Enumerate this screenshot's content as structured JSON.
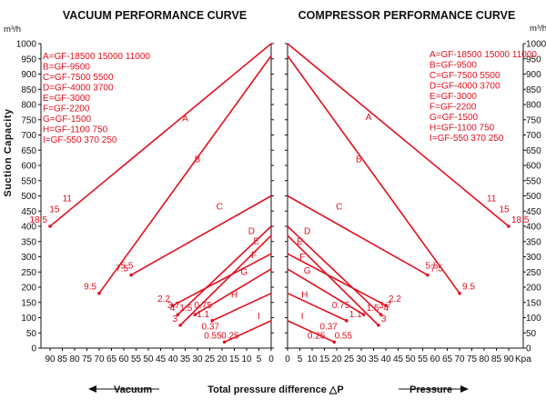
{
  "text": {
    "left_title": "VACUUM PERFORMANCE CURVE",
    "right_title": "COMPRESSOR PERFORMANCE CURVE",
    "y_axis_label": "Suction Capacity",
    "y_unit": "m³/h",
    "x_unit": "Kpa",
    "vacuum_label": "Vacuum",
    "pressure_label": "Pressure",
    "total_label": "Total pressure difference △P"
  },
  "legend": [
    "A=GF-18500  15000 11000",
    "B=GF-9500",
    "C=GF-7500 5500",
    "D=GF-4000 3700",
    "E=GF-3000",
    "F=GF-2200",
    "G=GF-1500",
    "H=GF-1100 750",
    "I=GF-550 370 250"
  ],
  "colors": {
    "curve": "#e0101e",
    "axis": "#111111"
  },
  "chart_data": [
    {
      "type": "line",
      "title": "VACUUM PERFORMANCE CURVE",
      "xlabel": "Total pressure difference △P (Kpa)",
      "ylabel": "Suction Capacity (m³/h)",
      "x_direction": "reversed",
      "xlim": [
        0,
        95
      ],
      "ylim": [
        0,
        1000
      ],
      "xticks": [
        90,
        85,
        80,
        75,
        70,
        65,
        60,
        55,
        50,
        45,
        40,
        35,
        30,
        25,
        20,
        15,
        10,
        5,
        0
      ],
      "yticks": [
        0,
        50,
        100,
        150,
        200,
        250,
        300,
        350,
        400,
        450,
        500,
        550,
        600,
        650,
        700,
        750,
        800,
        850,
        900,
        950,
        1000
      ],
      "series": [
        {
          "name": "A",
          "x": [
            0,
            90
          ],
          "y": [
            1000,
            400
          ],
          "letter_at": [
            35,
            745
          ],
          "points": [
            {
              "x": 90,
              "y": 400,
              "label": "18.5"
            },
            {
              "x": 85,
              "y": 435,
              "label": "15"
            },
            {
              "x": 80,
              "y": 470,
              "label": "11"
            }
          ]
        },
        {
          "name": "B",
          "x": [
            0,
            70
          ],
          "y": [
            960,
            180
          ],
          "letter_at": [
            30,
            610
          ],
          "points": [
            {
              "x": 70,
              "y": 180,
              "label": "9.5"
            }
          ]
        },
        {
          "name": "C",
          "x": [
            0,
            57
          ],
          "y": [
            500,
            240
          ],
          "letter_at": [
            21,
            455
          ],
          "points": [
            {
              "x": 57,
              "y": 240,
              "label": "7.5"
            },
            {
              "x": 55,
              "y": 250,
              "label": "5.5"
            }
          ]
        },
        {
          "name": "D",
          "x": [
            0,
            38
          ],
          "y": [
            400,
            110
          ],
          "letter_at": [
            8,
            375
          ],
          "points": [
            {
              "x": 38,
              "y": 110,
              "label": "4"
            },
            {
              "x": 36,
              "y": 120,
              "label": "3.7"
            }
          ]
        },
        {
          "name": "E",
          "x": [
            0,
            37
          ],
          "y": [
            370,
            75
          ],
          "letter_at": [
            6,
            342
          ],
          "points": [
            {
              "x": 37,
              "y": 75,
              "label": "3"
            }
          ]
        },
        {
          "name": "F",
          "x": [
            0,
            40
          ],
          "y": [
            310,
            140
          ],
          "letter_at": [
            7,
            295
          ],
          "points": [
            {
              "x": 40,
              "y": 140,
              "label": "2.2"
            }
          ]
        },
        {
          "name": "G",
          "x": [
            0,
            31
          ],
          "y": [
            260,
            110
          ],
          "letter_at": [
            11,
            240
          ],
          "points": [
            {
              "x": 31,
              "y": 110,
              "label": "1.5"
            }
          ]
        },
        {
          "name": "H",
          "x": [
            0,
            24
          ],
          "y": [
            180,
            90
          ],
          "letter_at": [
            15,
            165
          ],
          "points": [
            {
              "x": 24,
              "y": 90,
              "label": "1.1"
            },
            {
              "x": 23,
              "y": 120,
              "label": "0.75"
            }
          ]
        },
        {
          "name": "I",
          "x": [
            0,
            19
          ],
          "y": [
            90,
            20
          ],
          "letter_at": [
            5,
            95
          ],
          "points": [
            {
              "x": 20,
              "y": 50,
              "label": "0.37"
            },
            {
              "x": 19,
              "y": 20,
              "label": "0.55"
            },
            {
              "x": 12,
              "y": 20,
              "label": "0.25"
            }
          ]
        }
      ]
    },
    {
      "type": "line",
      "title": "COMPRESSOR PERFORMANCE CURVE",
      "xlabel": "Total pressure difference △P (Kpa)",
      "ylabel": "Suction Capacity (m³/h)",
      "xlim": [
        0,
        95
      ],
      "ylim": [
        0,
        1000
      ],
      "xticks": [
        0,
        5,
        10,
        15,
        20,
        25,
        30,
        35,
        40,
        45,
        50,
        55,
        60,
        65,
        70,
        75,
        80,
        85,
        90
      ],
      "yticks": [
        0,
        50,
        100,
        150,
        200,
        250,
        300,
        350,
        400,
        450,
        500,
        550,
        600,
        650,
        700,
        750,
        800,
        850,
        900,
        950,
        1000
      ],
      "series": [
        {
          "name": "A",
          "x": [
            0,
            90
          ],
          "y": [
            1000,
            400
          ],
          "letter_at": [
            33,
            750
          ],
          "points": [
            {
              "x": 80,
              "y": 470,
              "label": "11"
            },
            {
              "x": 85,
              "y": 435,
              "label": "15"
            },
            {
              "x": 90,
              "y": 400,
              "label": "18.5"
            }
          ]
        },
        {
          "name": "B",
          "x": [
            0,
            70
          ],
          "y": [
            960,
            180
          ],
          "letter_at": [
            29,
            610
          ],
          "points": [
            {
              "x": 70,
              "y": 180,
              "label": "9.5"
            }
          ]
        },
        {
          "name": "C",
          "x": [
            0,
            57
          ],
          "y": [
            500,
            240
          ],
          "letter_at": [
            21,
            455
          ],
          "points": [
            {
              "x": 55,
              "y": 250,
              "label": "5.5"
            },
            {
              "x": 57,
              "y": 240,
              "label": "7.5"
            }
          ]
        },
        {
          "name": "D",
          "x": [
            0,
            38
          ],
          "y": [
            400,
            110
          ],
          "letter_at": [
            8,
            375
          ],
          "points": [
            {
              "x": 36,
              "y": 120,
              "label": "3.7"
            },
            {
              "x": 38,
              "y": 110,
              "label": "4"
            }
          ]
        },
        {
          "name": "E",
          "x": [
            0,
            37
          ],
          "y": [
            370,
            75
          ],
          "letter_at": [
            5,
            340
          ],
          "points": [
            {
              "x": 37,
              "y": 75,
              "label": "3"
            }
          ]
        },
        {
          "name": "F",
          "x": [
            0,
            40
          ],
          "y": [
            310,
            140
          ],
          "letter_at": [
            6,
            290
          ],
          "points": [
            {
              "x": 40,
              "y": 140,
              "label": "2.2"
            }
          ]
        },
        {
          "name": "G",
          "x": [
            0,
            31
          ],
          "y": [
            260,
            110
          ],
          "letter_at": [
            8,
            245
          ],
          "points": [
            {
              "x": 31,
              "y": 110,
              "label": "1.5"
            }
          ]
        },
        {
          "name": "H",
          "x": [
            0,
            24
          ],
          "y": [
            180,
            90
          ],
          "letter_at": [
            7,
            165
          ],
          "points": [
            {
              "x": 17,
              "y": 120,
              "label": "0.75"
            },
            {
              "x": 24,
              "y": 90,
              "label": "1.1"
            }
          ]
        },
        {
          "name": "I",
          "x": [
            0,
            19
          ],
          "y": [
            90,
            20
          ],
          "letter_at": [
            6,
            95
          ],
          "points": [
            {
              "x": 12,
              "y": 50,
              "label": "0.37"
            },
            {
              "x": 7,
              "y": 20,
              "label": "0.25"
            },
            {
              "x": 18,
              "y": 20,
              "label": "0.55"
            }
          ]
        }
      ]
    }
  ]
}
